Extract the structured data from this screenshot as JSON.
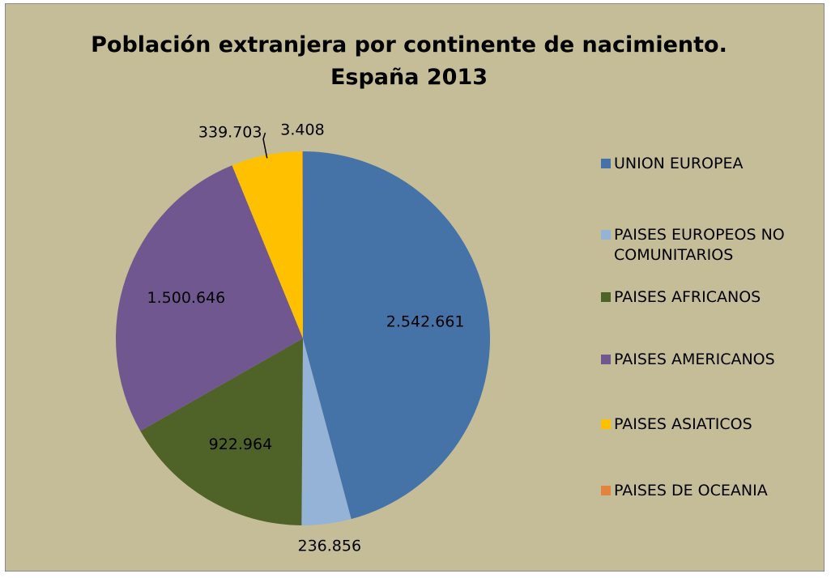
{
  "chart_data": {
    "type": "pie",
    "title": [
      "Población extranjera  por continente de nacimiento.",
      "España 2013"
    ],
    "categories": [
      "UNION EUROPEA",
      "PAISES EUROPEOS NO COMUNITARIOS",
      "PAISES AFRICANOS",
      "PAISES AMERICANOS",
      "PAISES ASIATICOS",
      "PAISES DE OCEANIA"
    ],
    "values": [
      2542661,
      236856,
      922964,
      1500646,
      339703,
      3408
    ],
    "value_labels": [
      "2.542.661",
      "236.856",
      "922.964",
      "1.500.646",
      "339.703",
      "3.408"
    ],
    "colors": [
      "#4572a7",
      "#95b3d7",
      "#4f6228",
      "#70578f",
      "#ffc000",
      "#e0843f"
    ],
    "legend": "right"
  }
}
